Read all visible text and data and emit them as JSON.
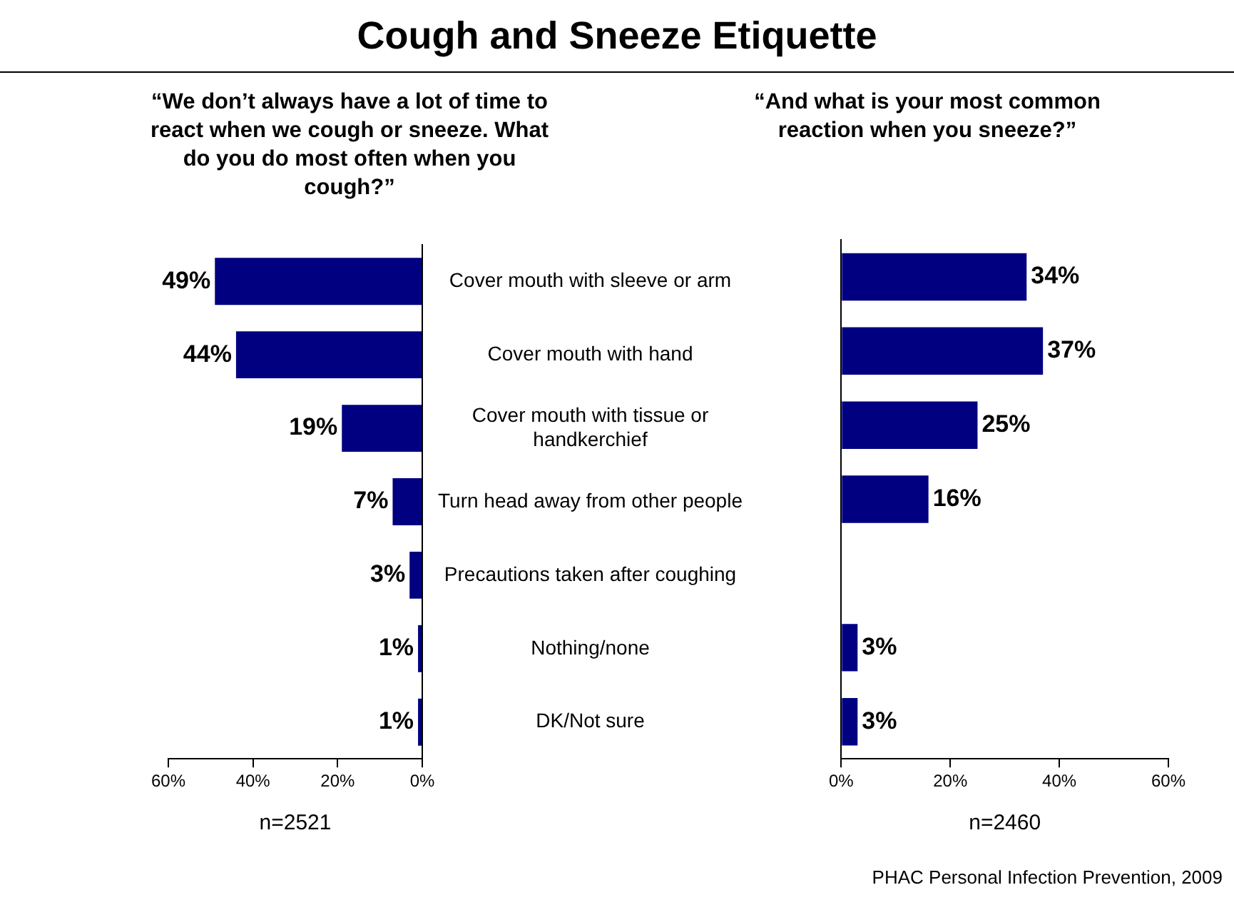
{
  "chart_data": [
    {
      "type": "bar",
      "orientation": "horizontal",
      "title": "Cough and Sneeze Etiquette",
      "subtitle": "“We don’t always have a lot of time to react when we cough or sneeze. What do you do most often when you cough?”",
      "xlabel": "n=2521",
      "categories": [
        "Cover mouth with sleeve or arm",
        "Cover mouth with hand",
        "Cover mouth with tissue or handkerchief",
        "Turn head away from other people",
        "Precautions taken after coughing",
        "Nothing/none",
        "DK/Not sure"
      ],
      "values": [
        49,
        44,
        19,
        7,
        3,
        1,
        1
      ],
      "value_labels": [
        "49%",
        "44%",
        "19%",
        "7%",
        "3%",
        "1%",
        "1%"
      ],
      "color": "#000080",
      "xlim": [
        60,
        0
      ],
      "xticks": [
        {
          "value": 60,
          "label": "60%"
        },
        {
          "value": 40,
          "label": "40%"
        },
        {
          "value": 20,
          "label": "20%"
        },
        {
          "value": 0,
          "label": "0%"
        }
      ],
      "grid": false,
      "legend": false
    },
    {
      "type": "bar",
      "orientation": "horizontal",
      "subtitle": "“And what is your most common reaction when you sneeze?”",
      "xlabel": "n=2460",
      "categories": [
        null,
        null,
        null,
        null,
        null,
        null,
        null
      ],
      "values": [
        34,
        37,
        25,
        16,
        null,
        3,
        3
      ],
      "value_labels": [
        "34%",
        "37%",
        "25%",
        "16%",
        null,
        "3%",
        "3%"
      ],
      "color": "#000080",
      "xlim": [
        0,
        60
      ],
      "xticks": [
        {
          "value": 0,
          "label": "0%"
        },
        {
          "value": 20,
          "label": "20%"
        },
        {
          "value": 40,
          "label": "40%"
        },
        {
          "value": 60,
          "label": "60%"
        }
      ],
      "grid": false,
      "legend": false,
      "tick_labels": "x",
      "annotations": [
        "PHAC Personal Infection Prevention, 2009"
      ]
    }
  ]
}
